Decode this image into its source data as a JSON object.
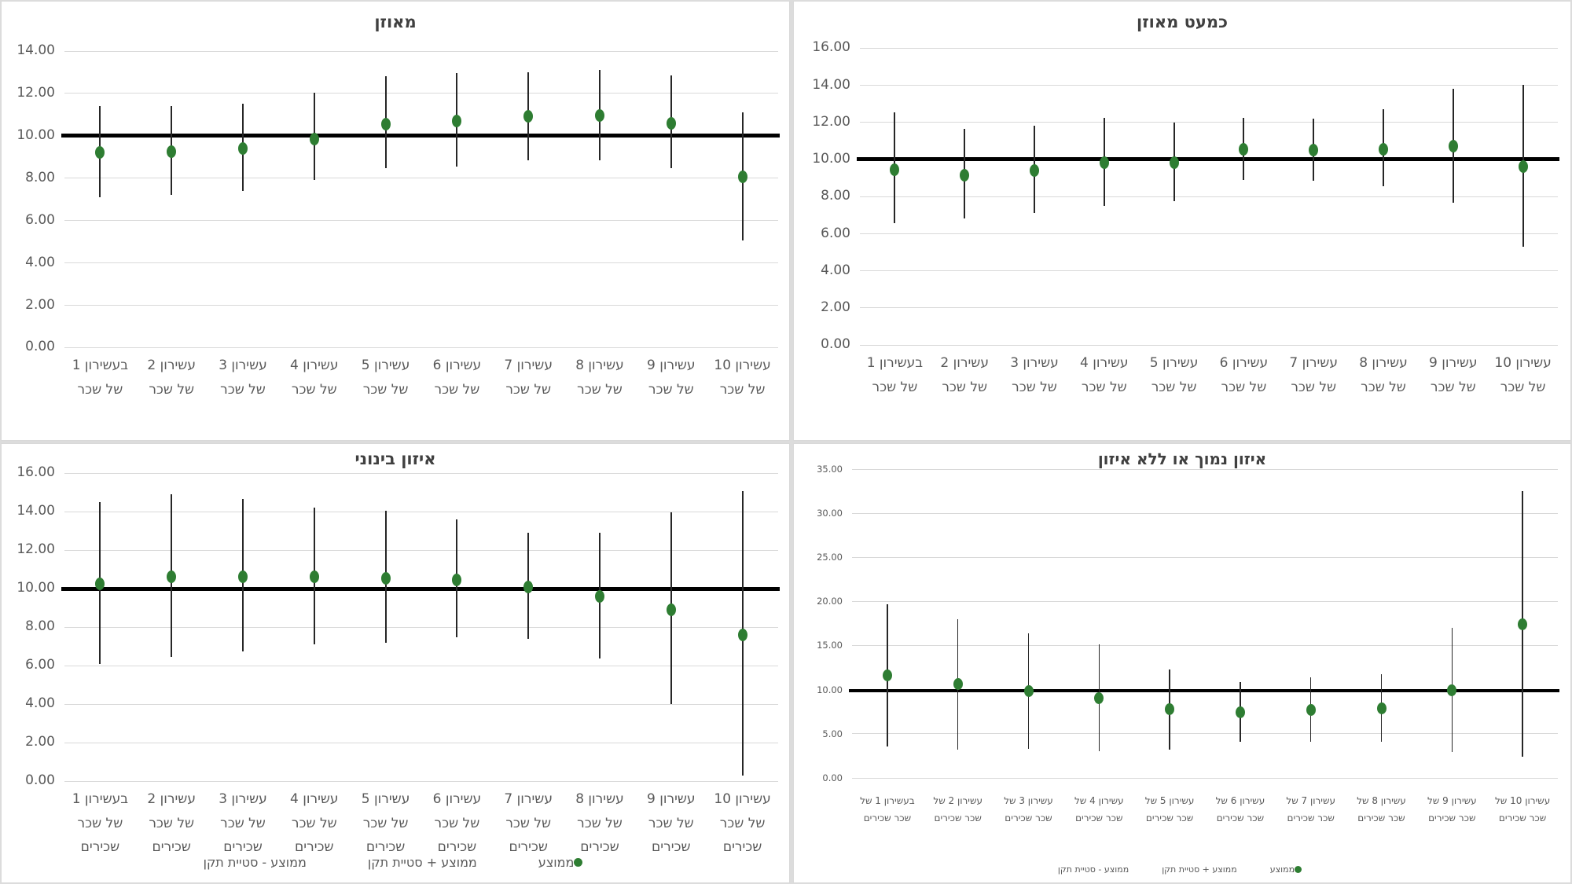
{
  "colors": {
    "marker_green": "#2e7d32",
    "error_bar": "#262626",
    "reference_line": "#000000",
    "gridline": "#d9d9d9",
    "axis_text": "#595959",
    "title_text": "#404040",
    "panel_border": "#d9d9d9",
    "panel_background": "#ffffff"
  },
  "chart_data": [
    {
      "type": "scatter",
      "title": "מאוזן",
      "xlabel": "",
      "ylabel": "",
      "ylim": [
        0,
        14
      ],
      "ystep": 2,
      "grid": true,
      "legend_position": "none",
      "reference_line_y": 10,
      "categories": [
        "בעשירון 1\nשל שכר",
        "עשירון 2\nשל שכר",
        "עשירון 3\nשל שכר",
        "עשירון 4\nשל שכר",
        "עשירון 5\nשל שכר",
        "עשירון 6\nשל שכר",
        "עשירון 7\nשל שכר",
        "עשירון 8\nשל שכר",
        "עשירון 9\nשל שכר",
        "עשירון 10\nשל שכר"
      ],
      "series": [
        {
          "name": "ממוצע",
          "role": "mean",
          "values": [
            9.2,
            9.25,
            9.4,
            9.85,
            10.55,
            10.7,
            10.9,
            10.95,
            10.6,
            8.05
          ]
        },
        {
          "name": "ממוצע + סטיית תקן",
          "role": "upper",
          "values": [
            11.4,
            11.4,
            11.5,
            12.05,
            12.8,
            12.95,
            13.0,
            13.1,
            12.85,
            11.1
          ]
        },
        {
          "name": "ממוצע - סטיית תקן",
          "role": "lower",
          "values": [
            7.1,
            7.2,
            7.4,
            7.9,
            8.45,
            8.55,
            8.85,
            8.85,
            8.45,
            5.05
          ]
        }
      ]
    },
    {
      "type": "scatter",
      "title": "כמעט מאוזן",
      "xlabel": "",
      "ylabel": "",
      "ylim": [
        0,
        16
      ],
      "ystep": 2,
      "grid": true,
      "legend_position": "none",
      "reference_line_y": 10,
      "categories": [
        "בעשירון 1\nשל שכר",
        "עשירון 2\nשל שכר",
        "עשירון 3\nשל שכר",
        "עשירון 4\nשל שכר",
        "עשירון 5\nשל שכר",
        "עשירון 6\nשל שכר",
        "עשירון 7\nשל שכר",
        "עשירון 8\nשל שכר",
        "עשירון 9\nשל שכר",
        "עשירון 10\nשל שכר"
      ],
      "series": [
        {
          "name": "ממוצע",
          "role": "mean",
          "values": [
            9.45,
            9.15,
            9.4,
            9.8,
            9.8,
            10.55,
            10.5,
            10.55,
            10.7,
            9.6
          ]
        },
        {
          "name": "ממוצע + סטיית תקן",
          "role": "upper",
          "values": [
            12.55,
            11.65,
            11.8,
            12.25,
            12.0,
            12.25,
            12.2,
            12.7,
            13.8,
            14.0
          ]
        },
        {
          "name": "ממוצע - סטיית תקן",
          "role": "lower",
          "values": [
            6.55,
            6.8,
            7.1,
            7.5,
            7.75,
            8.9,
            8.85,
            8.55,
            7.65,
            5.3
          ]
        }
      ]
    },
    {
      "type": "scatter",
      "title": "איזון בינוני",
      "xlabel": "",
      "ylabel": "",
      "ylim": [
        0,
        16
      ],
      "ystep": 2,
      "grid": true,
      "legend_position": "bottom",
      "reference_line_y": 10,
      "categories": [
        "בעשירון 1\nשל שכר\nשכירים",
        "עשירון 2\nשל שכר\nשכירים",
        "עשירון 3\nשל שכר\nשכירים",
        "עשירון 4\nשל שכר\nשכירים",
        "עשירון 5\nשל שכר\nשכירים",
        "עשירון 6\nשל שכר\nשכירים",
        "עשירון 7\nשל שכר\nשכירים",
        "עשירון 8\nשל שכר\nשכירים",
        "עשירון 9\nשל שכר\nשכירים",
        "עשירון 10\nשל שכר\nשכירים"
      ],
      "series": [
        {
          "name": "ממוצע",
          "role": "mean",
          "values": [
            10.25,
            10.6,
            10.6,
            10.6,
            10.55,
            10.45,
            10.1,
            9.6,
            8.9,
            7.6
          ]
        },
        {
          "name": "ממוצע + סטיית תקן",
          "role": "upper",
          "values": [
            14.5,
            14.9,
            14.65,
            14.2,
            14.05,
            13.6,
            12.9,
            12.9,
            13.95,
            15.05
          ]
        },
        {
          "name": "ממוצע - סטיית תקן",
          "role": "lower",
          "values": [
            6.1,
            6.45,
            6.75,
            7.1,
            7.2,
            7.45,
            7.4,
            6.35,
            4.0,
            0.3
          ]
        }
      ],
      "legend": {
        "items": [
          {
            "label": "ממוצע - סטיית תקן",
            "marker": "none"
          },
          {
            "label": "ממוצע + סטיית תקן",
            "marker": "none"
          },
          {
            "label": "ממוצע",
            "marker": "green-dot"
          }
        ]
      }
    },
    {
      "type": "scatter",
      "title": "איזון נמוך או ללא איזון",
      "xlabel": "",
      "ylabel": "",
      "ylim": [
        0,
        35
      ],
      "ystep": 5,
      "grid": true,
      "legend_position": "bottom",
      "reference_line_y": 9.9,
      "categories": [
        "בעשירון 1 של\nשכר שכירים",
        "עשירון 2 של\nשכר שכירים",
        "עשירון 3 של\nשכר שכירים",
        "עשירון 4 של\nשכר שכירים",
        "עשירון 5 של\nשכר שכירים",
        "עשירון 6 של\nשכר שכירים",
        "עשירון 7 של\nשכר שכירים",
        "עשירון 8 של\nשכר שכירים",
        "עשירון 9 של\nשכר שכירים",
        "עשירון 10 של\nשכר שכירים"
      ],
      "series": [
        {
          "name": "ממוצע",
          "role": "mean",
          "values": [
            11.6,
            10.6,
            9.8,
            9.0,
            7.8,
            7.4,
            7.7,
            7.9,
            9.9,
            17.4
          ]
        },
        {
          "name": "ממוצע + סטיית תקן",
          "role": "upper",
          "values": [
            19.7,
            18.0,
            16.4,
            15.1,
            12.3,
            10.9,
            11.4,
            11.8,
            17.0,
            32.5
          ]
        },
        {
          "name": "ממוצע - סטיית תקן",
          "role": "lower",
          "values": [
            3.6,
            3.2,
            3.3,
            3.0,
            3.2,
            4.1,
            4.1,
            4.1,
            2.9,
            2.4
          ]
        }
      ],
      "legend": {
        "items": [
          {
            "label": "ממוצע - סטיית תקן",
            "marker": "none"
          },
          {
            "label": "ממוצע + סטיית תקן",
            "marker": "none"
          },
          {
            "label": "ממוצע",
            "marker": "green-dot"
          }
        ]
      }
    }
  ]
}
